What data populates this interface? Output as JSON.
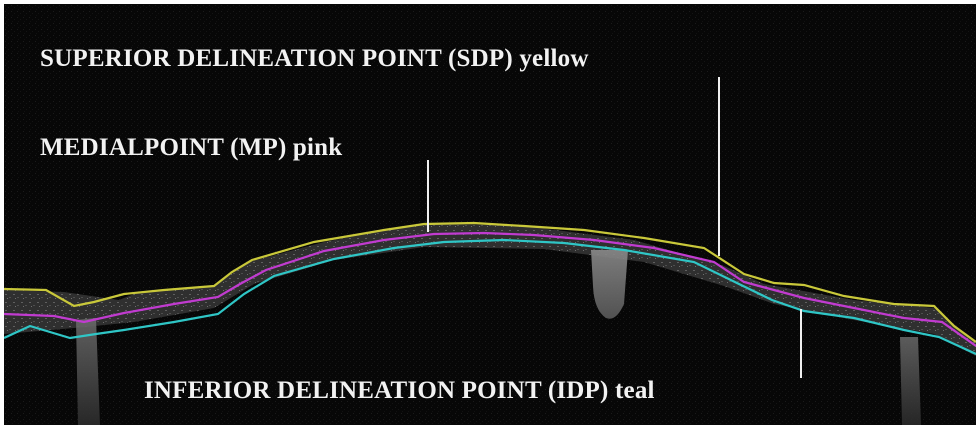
{
  "labels": {
    "sdp": "SUPERIOR DELINEATION POINT (SDP) yellow",
    "mp": "MEDIALPOINT (MP) pink",
    "idp": "INFERIOR DELINEATION POINT (IDP) teal"
  },
  "colors": {
    "background": "#050505",
    "tissue": "#3a3a3a",
    "superior_line": "#c9c83a",
    "medial_line": "#c13bd0",
    "inferior_line": "#2fc6c6",
    "pointer": "#f0f0f0",
    "text": "#f2f2f2"
  }
}
